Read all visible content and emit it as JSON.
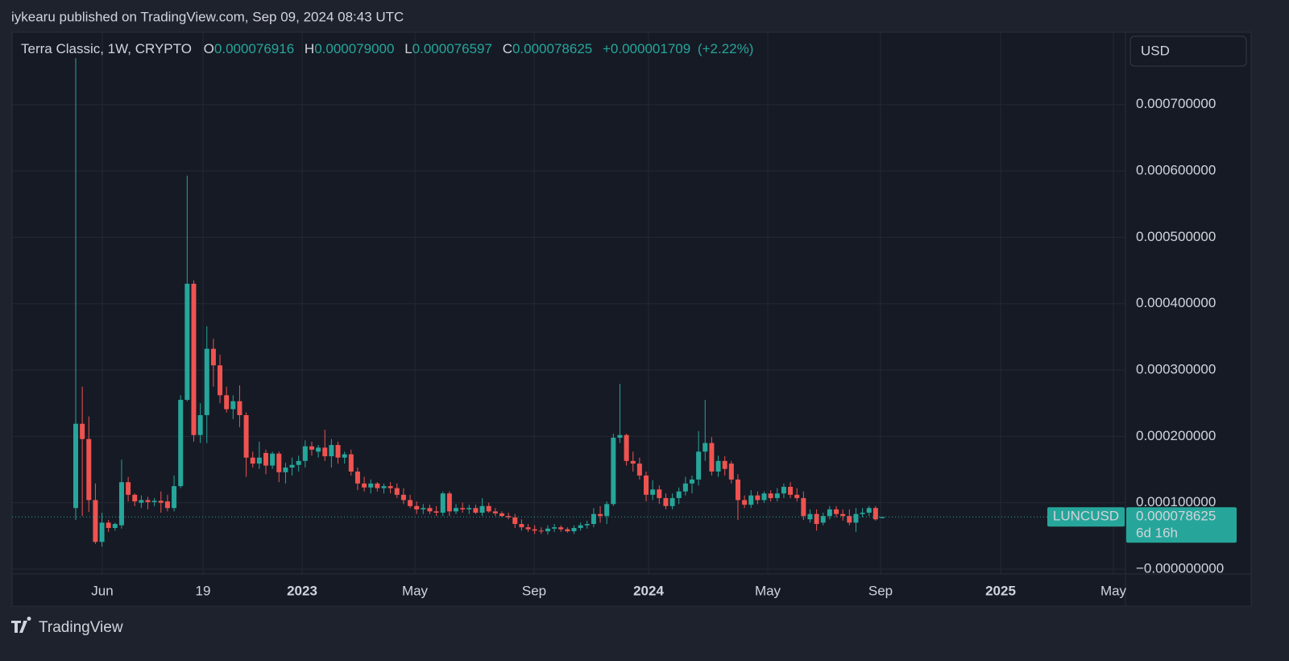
{
  "header": {
    "publisher": "iykearu published on TradingView.com, Sep 09, 2024 08:43 UTC",
    "brand": "TradingView"
  },
  "chart_data": {
    "type": "candlestick",
    "title": "Terra Classic, 1W, CRYPTO",
    "currency": "USD",
    "ohlc_keys": [
      "O",
      "H",
      "L",
      "C"
    ],
    "ohlc_labels": [
      "0.000076916",
      "0.000079000",
      "0.000076597",
      "0.000078625"
    ],
    "change": {
      "value": 1.709e-06,
      "label": "+0.000001709"
    },
    "change_pct": {
      "value": 2.22,
      "label": "(+2.22%)"
    },
    "series": [
      {
        "name": "LUNCUSD",
        "up_color": "#26a69a",
        "down_color": "#ef5350",
        "last_label": "0.000078625",
        "countdown": "6d 16h",
        "open": [
          9.2e-05,
          0.000219,
          0.000196,
          0.000104,
          4.1e-05,
          7e-05,
          6.2e-05,
          6.6e-05,
          0.000131,
          0.000112,
          0.0001,
          0.000104,
          0.000101,
          0.000103,
          0.000102,
          9.2e-05,
          0.000125,
          0.000255,
          0.00043,
          0.000202,
          0.000232,
          0.000332,
          0.000307,
          0.000262,
          0.000241,
          0.000253,
          0.000232,
          0.000168,
          0.000159,
          0.000175,
          0.000156,
          0.000174,
          0.000146,
          0.000153,
          0.000157,
          0.000163,
          0.000185,
          0.000177,
          0.000183,
          0.00017,
          0.000187,
          0.000168,
          0.000173,
          0.000147,
          0.000129,
          0.000123,
          0.000129,
          0.000122,
          0.000125,
          0.000122,
          0.000112,
          0.000104,
          9.5e-05,
          9e-05,
          9.2e-05,
          8.7e-05,
          8.5e-05,
          0.000114,
          8.7e-05,
          9.2e-05,
          9e-05,
          9.2e-05,
          8.5e-05,
          9.5e-05,
          8.7e-05,
          8.4e-05,
          8e-05,
          7.8e-05,
          6.8e-05,
          6.3e-05,
          6e-05,
          5.8e-05,
          5.7e-05,
          6.1e-05,
          6.3e-05,
          6e-05,
          5.7e-05,
          6.2e-05,
          6.6e-05,
          6.8e-05,
          8.3e-05,
          8e-05,
          9.8e-05,
          0.000198,
          0.000202,
          0.000163,
          0.000159,
          0.000141,
          0.000112,
          0.00012,
          0.000107,
          9.5e-05,
          0.000107,
          0.000117,
          0.000129,
          0.000135,
          0.000177,
          0.00019,
          0.000147,
          0.000163,
          0.000159,
          0.000135,
          0.000104,
          9.7e-05,
          0.000111,
          0.000104,
          0.000114,
          0.000107,
          0.000114,
          0.000124,
          0.000112,
          0.000107,
          7.5e-05,
          8.3e-05,
          7e-05,
          8e-05,
          9e-05,
          8.3e-05,
          8e-05,
          7e-05,
          8.3e-05,
          8.5e-05,
          9.2e-05,
          7.6916e-05
        ],
        "high": [
          0.00077,
          0.000275,
          0.00023,
          0.000129,
          8.5e-05,
          7.4e-05,
          7e-05,
          0.000165,
          0.000139,
          0.000114,
          0.000111,
          0.000109,
          0.000107,
          0.000117,
          0.000112,
          0.000141,
          0.000262,
          0.000593,
          0.000435,
          0.00025,
          0.000366,
          0.000347,
          0.000323,
          0.000275,
          0.000262,
          0.000277,
          0.000236,
          0.000177,
          0.000192,
          0.00018,
          0.000177,
          0.000177,
          0.00016,
          0.000168,
          0.000171,
          0.000194,
          0.000192,
          0.000187,
          0.00021,
          0.000196,
          0.000192,
          0.000177,
          0.00018,
          0.000153,
          0.000139,
          0.000135,
          0.000131,
          0.000129,
          0.000131,
          0.000129,
          0.000122,
          0.000112,
          0.000102,
          9.8e-05,
          9.7e-05,
          9.5e-05,
          0.000117,
          0.000117,
          9.8e-05,
          0.0001,
          9.7e-05,
          9.7e-05,
          0.000107,
          0.0001,
          9.2e-05,
          8.7e-05,
          8.5e-05,
          8.3e-05,
          7.5e-05,
          6.8e-05,
          6.6e-05,
          6.3e-05,
          6.6e-05,
          6.8e-05,
          6.6e-05,
          6.3e-05,
          6.6e-05,
          7e-05,
          7.3e-05,
          9.2e-05,
          9.5e-05,
          0.000102,
          0.000204,
          0.000279,
          0.000204,
          0.000177,
          0.000168,
          0.000147,
          0.000134,
          0.000126,
          0.000114,
          0.000114,
          0.000123,
          0.000139,
          0.000141,
          0.000208,
          0.000255,
          0.000199,
          0.000171,
          0.00017,
          0.000163,
          0.000143,
          0.000111,
          0.000119,
          0.000117,
          0.000117,
          0.000119,
          0.000122,
          0.000129,
          0.000131,
          0.000122,
          0.000117,
          9e-05,
          9e-05,
          8.5e-05,
          9.5e-05,
          9.5e-05,
          9e-05,
          9e-05,
          9.2e-05,
          9.2e-05,
          9.5e-05,
          9.5e-05,
          7.9e-05
        ],
        "low": [
          7.4e-05,
          8e-05,
          8.6e-05,
          3.8e-05,
          3.4e-05,
          5.6e-05,
          5.8e-05,
          6.1e-05,
          0.000102,
          9.5e-05,
          9.2e-05,
          9e-05,
          9.5e-05,
          8.5e-05,
          8.7e-05,
          8.7e-05,
          0.000122,
          0.000253,
          0.000192,
          0.00019,
          0.00019,
          0.000275,
          0.00025,
          0.000236,
          0.000226,
          0.000214,
          0.000139,
          0.000153,
          0.000151,
          0.000143,
          0.000151,
          0.000131,
          0.000129,
          0.000141,
          0.000147,
          0.000153,
          0.000171,
          0.000168,
          0.000163,
          0.000153,
          0.000159,
          0.000159,
          0.000141,
          0.000119,
          0.000117,
          0.000114,
          0.000117,
          0.000114,
          0.000114,
          0.000107,
          9.8e-05,
          9.2e-05,
          8.3e-05,
          8.3e-05,
          8.3e-05,
          8e-05,
          8e-05,
          8e-05,
          8.3e-05,
          8.5e-05,
          8.3e-05,
          8.3e-05,
          8e-05,
          8.5e-05,
          8e-05,
          7.8e-05,
          7.5e-05,
          6.2e-05,
          5.8e-05,
          5.6e-05,
          5.3e-05,
          5.3e-05,
          5.2e-05,
          5.6e-05,
          5.6e-05,
          5.5e-05,
          5.3e-05,
          5.8e-05,
          6.1e-05,
          6.3e-05,
          7e-05,
          6.8e-05,
          9.5e-05,
          0.00019,
          0.000156,
          0.000147,
          0.000135,
          0.000102,
          0.000104,
          9.8e-05,
          9e-05,
          9e-05,
          9.8e-05,
          0.000111,
          0.000114,
          0.000126,
          0.000163,
          0.000141,
          0.000139,
          0.000141,
          0.000129,
          7.4e-05,
          9.2e-05,
          9.2e-05,
          9.8e-05,
          0.0001,
          0.000102,
          0.000102,
          0.000107,
          0.000107,
          0.000102,
          7.4e-05,
          7e-05,
          5.8e-05,
          6.6e-05,
          7.5e-05,
          7.8e-05,
          7.3e-05,
          6.6e-05,
          5.6e-05,
          7.8e-05,
          8e-05,
          7.3e-05,
          7.6597e-05
        ],
        "close": [
          0.000219,
          0.000196,
          0.000104,
          4.1e-05,
          7e-05,
          6.2e-05,
          6.8e-05,
          0.000131,
          0.000112,
          0.000102,
          0.000104,
          0.000101,
          0.000103,
          0.0001,
          9.2e-05,
          0.000125,
          0.000255,
          0.00043,
          0.000202,
          0.000232,
          0.000332,
          0.000307,
          0.000262,
          0.000241,
          0.000253,
          0.000232,
          0.000168,
          0.000159,
          0.000168,
          0.000156,
          0.000174,
          0.000146,
          0.000153,
          0.000157,
          0.000163,
          0.000185,
          0.00018,
          0.000183,
          0.00017,
          0.000187,
          0.000168,
          0.000173,
          0.000147,
          0.000129,
          0.000123,
          0.000129,
          0.000122,
          0.000125,
          0.000122,
          0.000112,
          0.000104,
          9.5e-05,
          9e-05,
          9.2e-05,
          8.7e-05,
          8.5e-05,
          0.000114,
          8.7e-05,
          9.2e-05,
          9e-05,
          9.2e-05,
          8.5e-05,
          9.5e-05,
          8.7e-05,
          8.4e-05,
          8e-05,
          7.8e-05,
          6.8e-05,
          6.3e-05,
          6e-05,
          5.8e-05,
          5.7e-05,
          6.1e-05,
          6.3e-05,
          6e-05,
          5.7e-05,
          6.2e-05,
          6.6e-05,
          6.8e-05,
          8.3e-05,
          8e-05,
          9.8e-05,
          0.000198,
          0.000202,
          0.000163,
          0.000159,
          0.000141,
          0.000112,
          0.00012,
          0.000107,
          9.5e-05,
          0.000107,
          0.000117,
          0.000129,
          0.000135,
          0.000177,
          0.00019,
          0.000147,
          0.000163,
          0.000151,
          0.000135,
          0.000104,
          9.7e-05,
          0.000111,
          0.000104,
          0.000114,
          0.000107,
          0.000114,
          0.000124,
          0.000112,
          0.000107,
          8e-05,
          8.3e-05,
          6.8e-05,
          8e-05,
          9e-05,
          8.3e-05,
          8e-05,
          7e-05,
          8.3e-05,
          8.5e-05,
          9.2e-05,
          7.5e-05,
          7.8625e-05
        ]
      }
    ],
    "x_labels": [
      "Jun",
      "19",
      "2023",
      "May",
      "Sep",
      "2024",
      "May",
      "Sep",
      "2025",
      "May"
    ],
    "ylim": [
      -7.3e-06,
      0.000809
    ],
    "yticks": [
      {
        "value": 0,
        "label": "−0.000000000"
      },
      {
        "value": 0.0001,
        "label": "0.000100000"
      },
      {
        "value": 0.0002,
        "label": "0.000200000"
      },
      {
        "value": 0.0003,
        "label": "0.000300000"
      },
      {
        "value": 0.0004,
        "label": "0.000400000"
      },
      {
        "value": 0.0005,
        "label": "0.000500000"
      },
      {
        "value": 0.0006,
        "label": "0.000600000"
      },
      {
        "value": 0.0007,
        "label": "0.000700000"
      }
    ],
    "grid": true
  }
}
